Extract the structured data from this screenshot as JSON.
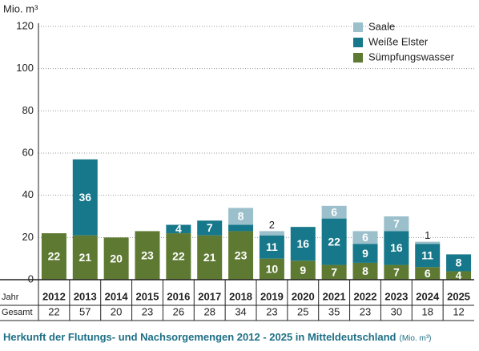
{
  "chart_data": {
    "type": "stacked_bar",
    "title": "Herkunft der Flutungs- und Nachsorgemengen 2012 - 2025 in Mitteldeutschland",
    "title_unit": "(Mio. m³)",
    "y_label": "Mio. m³",
    "categories": [
      "2012",
      "2013",
      "2014",
      "2015",
      "2016",
      "2017",
      "2018",
      "2019",
      "2020",
      "2021",
      "2022",
      "2023",
      "2024",
      "2025"
    ],
    "series": [
      {
        "name": "Sümpfungswasser",
        "color": "#5e7a32",
        "values": [
          22,
          21,
          20,
          23,
          22,
          21,
          23,
          10,
          9,
          7,
          8,
          7,
          6,
          4
        ]
      },
      {
        "name": "Weiße Elster",
        "color": "#16788a",
        "values": [
          0,
          36,
          0,
          0,
          4,
          7,
          3,
          11,
          16,
          22,
          9,
          16,
          11,
          8
        ]
      },
      {
        "name": "Saale",
        "color": "#9bbfcb",
        "values": [
          0,
          0,
          0,
          0,
          0,
          0,
          8,
          2,
          0,
          6,
          6,
          7,
          1,
          0
        ]
      }
    ],
    "row_labels": [
      "Jahr",
      "Gesamt"
    ],
    "totals": [
      22,
      57,
      20,
      23,
      26,
      28,
      34,
      23,
      25,
      35,
      23,
      30,
      18,
      12
    ],
    "ylim": [
      0,
      120
    ],
    "yticks": [
      0,
      20,
      40,
      60,
      80,
      100,
      120
    ],
    "grid": true,
    "legend": "top-right"
  }
}
